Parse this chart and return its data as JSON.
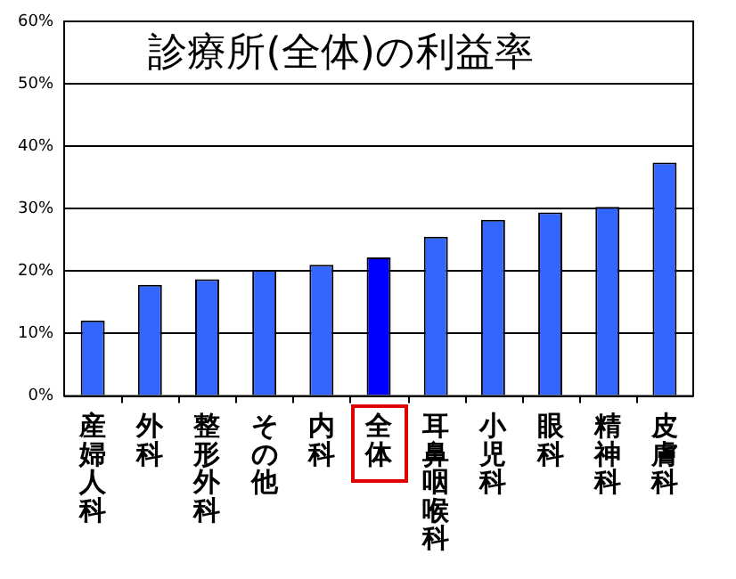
{
  "chart_data": {
    "type": "bar",
    "title": "診療所(全体)の利益率",
    "categories": [
      "産婦人科",
      "外科",
      "整形外科",
      "その他",
      "内科",
      "全体",
      "耳鼻咽喉科",
      "小児科",
      "眼科",
      "精神科",
      "皮膚科"
    ],
    "values": [
      12.1,
      17.8,
      18.7,
      20.2,
      21.0,
      22.2,
      25.5,
      28.2,
      29.4,
      30.3,
      37.4
    ],
    "colors": [
      "#3366ff",
      "#3366ff",
      "#3366ff",
      "#3366ff",
      "#3366ff",
      "#0000ff",
      "#3366ff",
      "#3366ff",
      "#3366ff",
      "#3366ff",
      "#3366ff"
    ],
    "ylim": [
      0,
      60
    ],
    "yticks": [
      {
        "value": 0,
        "label": "0%"
      },
      {
        "value": 10,
        "label": "10%"
      },
      {
        "value": 20,
        "label": "20%"
      },
      {
        "value": 30,
        "label": "30%"
      },
      {
        "value": 40,
        "label": "40%"
      },
      {
        "value": 50,
        "label": "50%"
      },
      {
        "value": 60,
        "label": "60%"
      }
    ],
    "grid": "y",
    "legend": false
  }
}
